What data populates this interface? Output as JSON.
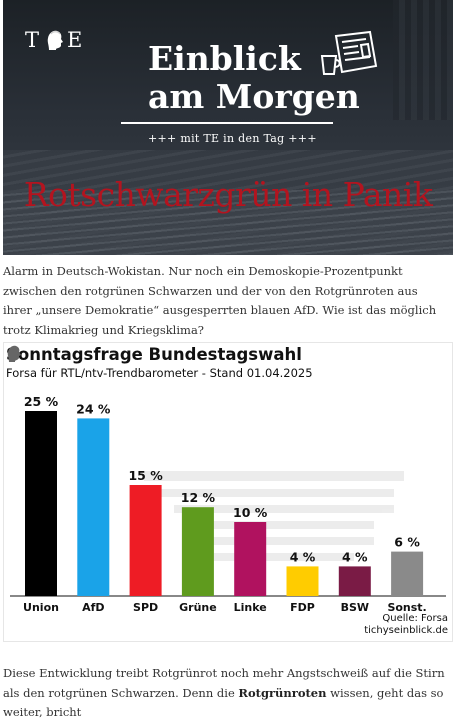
{
  "hero": {
    "logo_text_left": "T",
    "logo_text_right": "E",
    "title_line1": "Einblick",
    "title_line2": "am Morgen",
    "subtitle": "+++ mit TE in den Tag +++",
    "headline": "Rotschwarzgrün in Panik",
    "headline_color": "#b3141f"
  },
  "intro_text": "Alarm in Deutsch-Wokistan. Nur noch ein Demoskopie-Prozentpunkt zwischen den rotgrünen Schwarzen und der von den Rotgrünroten aus ihrer „unsere Demokratie“ ausgesperrten blauen AfD. Wie ist das möglich trotz Klimakrieg und Kriegsklima?",
  "chart_data": {
    "type": "bar",
    "title": "Sonntagsfrage Bundestagswahl",
    "subtitle": "Forsa für RTL/ntv-Trendbarometer - Stand 01.04.2025",
    "categories": [
      "Union",
      "AfD",
      "SPD",
      "Grüne",
      "Linke",
      "FDP",
      "BSW",
      "Sonst."
    ],
    "values": [
      25,
      24,
      15,
      12,
      10,
      4,
      4,
      6
    ],
    "value_labels": [
      "25 %",
      "24 %",
      "15 %",
      "12 %",
      "10 %",
      "4 %",
      "4 %",
      "6 %"
    ],
    "colors": [
      "#000000",
      "#1aa3e8",
      "#ee1c25",
      "#5f9b1e",
      "#b0125f",
      "#ffcc00",
      "#7a1b45",
      "#8a8a8a"
    ],
    "ylim": [
      0,
      25
    ],
    "grid": false,
    "source_line1": "Quelle: Forsa",
    "source_line2": "tichyseinblick.de"
  },
  "outro": {
    "part1": "Diese Entwicklung treibt Rotgrünrot noch mehr Angstschweiß auf die Stirn als den rotgrünen Schwarzen. Denn die ",
    "bold": "Rotgrünroten",
    "part2": " wissen, geht das so weiter, bricht"
  }
}
